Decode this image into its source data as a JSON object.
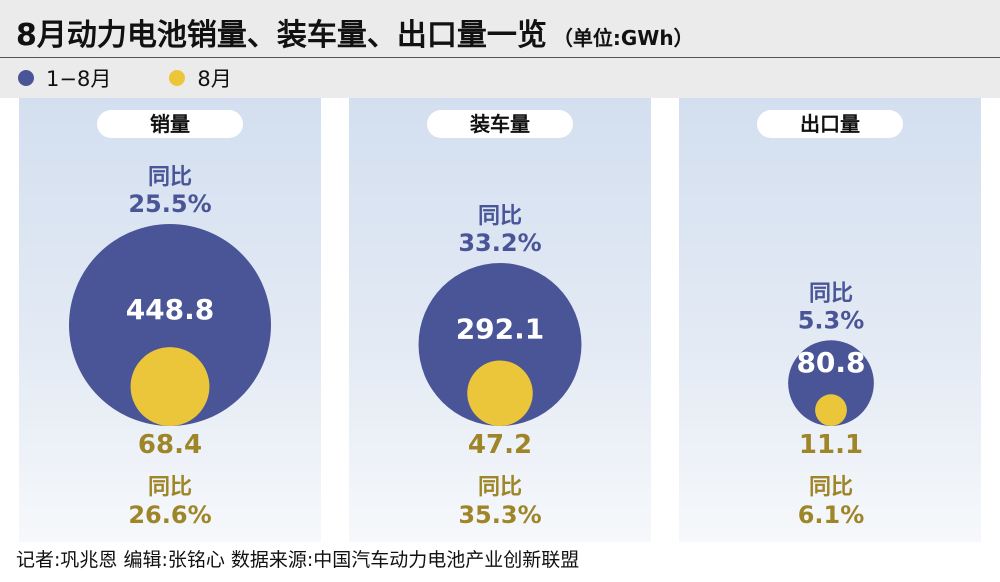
{
  "header": {
    "title": "8月动力电池销量、装车量、出口量一览",
    "unit": "（单位:GWh）"
  },
  "legend": [
    {
      "label": "1−8月",
      "color": "#4a5597"
    },
    {
      "label": "8月",
      "color": "#ecc63a"
    }
  ],
  "chart_data": {
    "type": "bubble",
    "unit": "GWh",
    "categories": [
      "销量",
      "装车量",
      "出口量"
    ],
    "series": [
      {
        "name": "1−8月",
        "color": "#4a5597",
        "values": [
          448.8,
          292.1,
          80.8
        ],
        "yoy_label": "同比",
        "yoy": [
          "25.5%",
          "33.2%",
          "5.3%"
        ]
      },
      {
        "name": "8月",
        "color": "#ecc63a",
        "values": [
          68.4,
          47.2,
          11.1
        ],
        "yoy_label": "同比",
        "yoy": [
          "26.6%",
          "35.3%",
          "6.1%"
        ]
      }
    ]
  },
  "footer": "记者:巩兆恩   编辑:张铭心   数据来源:中国汽车动力电池产业创新联盟"
}
